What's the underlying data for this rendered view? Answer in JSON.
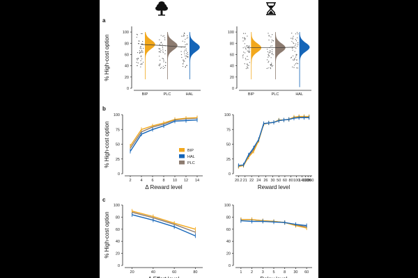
{
  "colors": {
    "BIP": "#F2A81D",
    "HAL": "#1565B8",
    "PLC": "#8C7B70"
  },
  "icons": {
    "left": "tree-icon",
    "right": "hourglass-icon"
  },
  "chart_data": [
    {
      "id": "a-effort",
      "panel": "a",
      "type": "violin",
      "ylabel": "% High-cost option",
      "categories": [
        "BIP",
        "PLC",
        "HAL"
      ],
      "yticks": [
        0,
        20,
        40,
        60,
        80,
        100
      ],
      "ylim": [
        0,
        110
      ],
      "means": [
        78,
        76,
        73
      ]
    },
    {
      "id": "a-delay",
      "panel": "",
      "type": "violin",
      "categories": [
        "BIP",
        "PLC",
        "HAL"
      ],
      "yticks": [
        0,
        20,
        40,
        60,
        80,
        100
      ],
      "ylim": [
        0,
        110
      ],
      "means": [
        72,
        72,
        73
      ]
    },
    {
      "id": "b-effort",
      "panel": "b",
      "type": "line",
      "xlabel": "Δ Reward level",
      "ylabel": "% High-cost option",
      "x": [
        2,
        4,
        6,
        8,
        10,
        12,
        14
      ],
      "xlim": [
        1,
        15
      ],
      "xticks": [
        "2",
        "4",
        "6",
        "8",
        "10",
        "12",
        "14"
      ],
      "yticks": [
        0,
        25,
        50,
        75,
        100
      ],
      "ylim": [
        0,
        100
      ],
      "legend": [
        "BIP",
        "HAL",
        "PLC"
      ],
      "series": [
        {
          "name": "BIP",
          "values": [
            47,
            75,
            81,
            86,
            92,
            94,
            95
          ]
        },
        {
          "name": "HAL",
          "values": [
            38,
            67,
            75,
            81,
            89,
            90,
            91
          ]
        },
        {
          "name": "PLC",
          "values": [
            43,
            71,
            79,
            84,
            91,
            93,
            94
          ]
        }
      ]
    },
    {
      "id": "b-delay",
      "panel": "",
      "type": "line",
      "xlabel": "Reward level",
      "categorical": true,
      "x": [
        0,
        1,
        2,
        3,
        4,
        5,
        6,
        7,
        8,
        9,
        10,
        11,
        12,
        13,
        14
      ],
      "xlim": [
        -0.6,
        14.6
      ],
      "xticks": [
        "20.2",
        "21",
        "22",
        "24",
        "26",
        "30",
        "50",
        "60",
        "80",
        "100",
        "140",
        "160",
        "200",
        "260"
      ],
      "xtickpos": [
        0,
        1.3,
        2.6,
        4,
        5.4,
        6.8,
        8,
        9.2,
        10.4,
        11.5,
        12.6,
        13.3,
        13.8,
        14.3
      ],
      "yticks": [
        0,
        25,
        50,
        75,
        100
      ],
      "ylim": [
        0,
        100
      ],
      "series": [
        {
          "name": "BIP",
          "values": [
            12,
            14,
            28,
            38,
            56,
            84,
            86,
            87,
            91,
            91,
            92,
            96,
            97,
            97,
            97
          ]
        },
        {
          "name": "HAL",
          "values": [
            14,
            15,
            32,
            44,
            58,
            85,
            86,
            87,
            90,
            91,
            92,
            94,
            95,
            95,
            95
          ]
        },
        {
          "name": "PLC",
          "values": [
            13,
            14,
            30,
            41,
            57,
            84,
            86,
            87,
            90,
            91,
            92,
            95,
            96,
            96,
            96
          ]
        }
      ]
    },
    {
      "id": "c-effort",
      "panel": "c",
      "type": "line",
      "xlabel": "Δ Effort level",
      "ylabel": "% High-cost option",
      "x": [
        20,
        40,
        60,
        80
      ],
      "xlim": [
        13,
        87
      ],
      "xticks": [
        "20",
        "40",
        "60",
        "80"
      ],
      "yticks": [
        0,
        20,
        40,
        60,
        80,
        100
      ],
      "ylim": [
        0,
        100
      ],
      "series": [
        {
          "name": "BIP",
          "values": [
            90,
            81,
            70,
            60
          ]
        },
        {
          "name": "HAL",
          "values": [
            84,
            75,
            64,
            49
          ]
        },
        {
          "name": "PLC",
          "values": [
            88,
            79,
            68,
            55
          ]
        }
      ]
    },
    {
      "id": "c-delay",
      "panel": "",
      "type": "line",
      "xlabel": "Delay level",
      "categorical": true,
      "x": [
        0,
        1,
        2,
        3,
        4,
        5,
        6
      ],
      "xlim": [
        -0.5,
        6.5
      ],
      "xticks": [
        "1",
        "2",
        "3",
        "5",
        "8",
        "30",
        "60"
      ],
      "yticks": [
        0,
        20,
        40,
        60,
        80,
        100
      ],
      "ylim": [
        0,
        100
      ],
      "series": [
        {
          "name": "BIP",
          "values": [
            76,
            76,
            74,
            73,
            71,
            66,
            62
          ]
        },
        {
          "name": "HAL",
          "values": [
            74,
            73,
            73,
            72,
            71,
            68,
            66
          ]
        },
        {
          "name": "PLC",
          "values": [
            76,
            76,
            74,
            73,
            71,
            67,
            64
          ]
        }
      ]
    }
  ]
}
